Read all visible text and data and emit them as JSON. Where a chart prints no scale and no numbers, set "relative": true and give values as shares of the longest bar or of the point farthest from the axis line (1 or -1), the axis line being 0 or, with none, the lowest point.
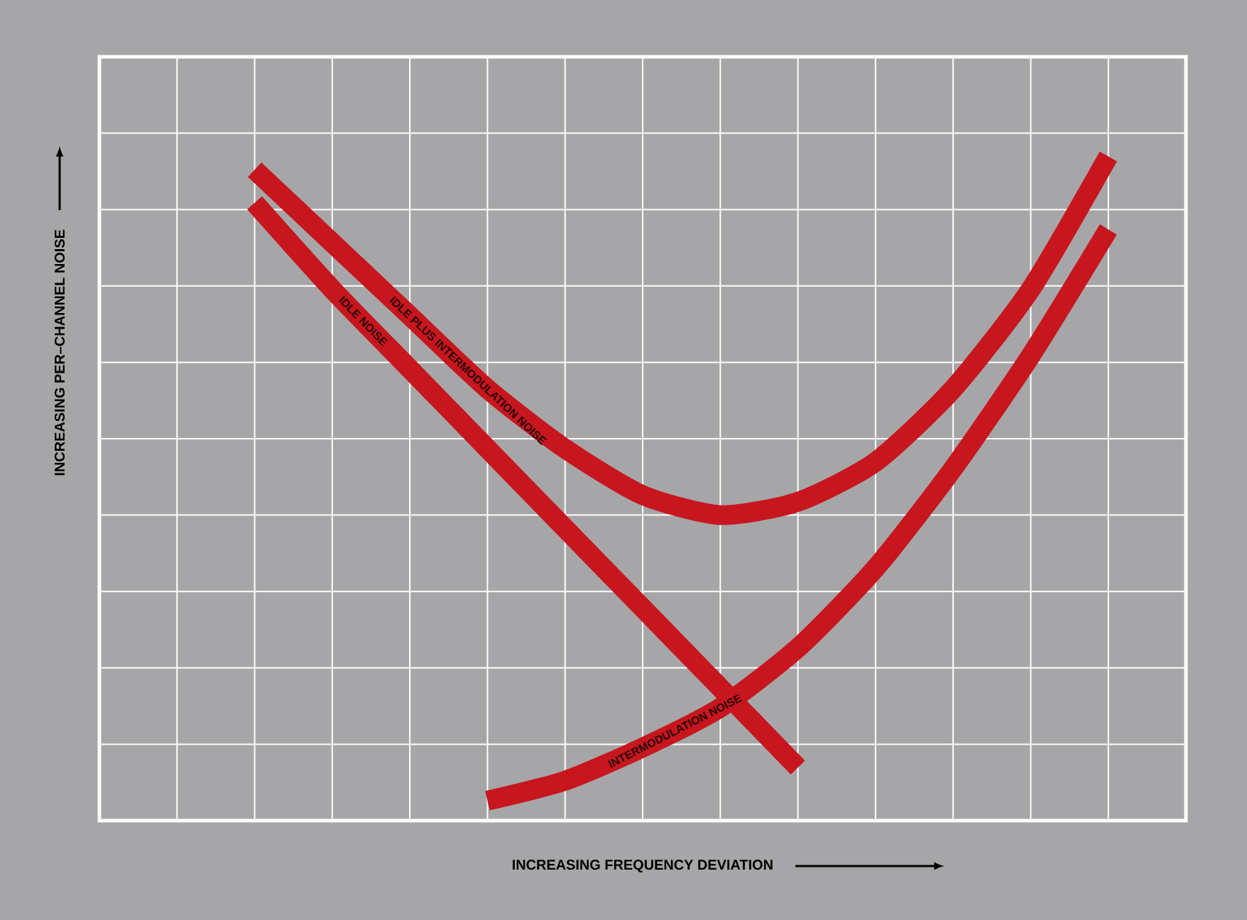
{
  "chart_data": {
    "type": "line",
    "relative": true,
    "xlabel": "INCREASING FREQUENCY DEVIATION",
    "ylabel": "INCREASING PER–CHANNEL NOISE",
    "categories": [
      null,
      null,
      null,
      null,
      null,
      null,
      null,
      null,
      null,
      null,
      null,
      null,
      null,
      null,
      null
    ],
    "series": [
      {
        "name": "IDLE NOISE",
        "color": "#c8161e",
        "values": [
          null,
          null,
          0.93,
          0.8,
          0.68,
          0.56,
          0.44,
          0.32,
          0.2,
          0.08,
          null,
          null,
          null,
          null,
          null
        ]
      },
      {
        "name": "IDLE PLUS INTERMODULATION NOISE",
        "color": "#c8161e",
        "values": [
          null,
          null,
          0.98,
          0.87,
          0.76,
          0.65,
          0.56,
          0.49,
          0.46,
          0.48,
          0.54,
          0.65,
          0.8,
          1,
          null
        ]
      },
      {
        "name": "INTERMODULATION NOISE",
        "color": "#c8161e",
        "values": [
          null,
          null,
          null,
          null,
          null,
          0.03,
          0.06,
          0.11,
          0.17,
          0.26,
          0.38,
          0.53,
          0.7,
          0.89,
          null
        ]
      }
    ],
    "grid": true,
    "legend": false,
    "marker": "none",
    "line_style": "solid"
  }
}
